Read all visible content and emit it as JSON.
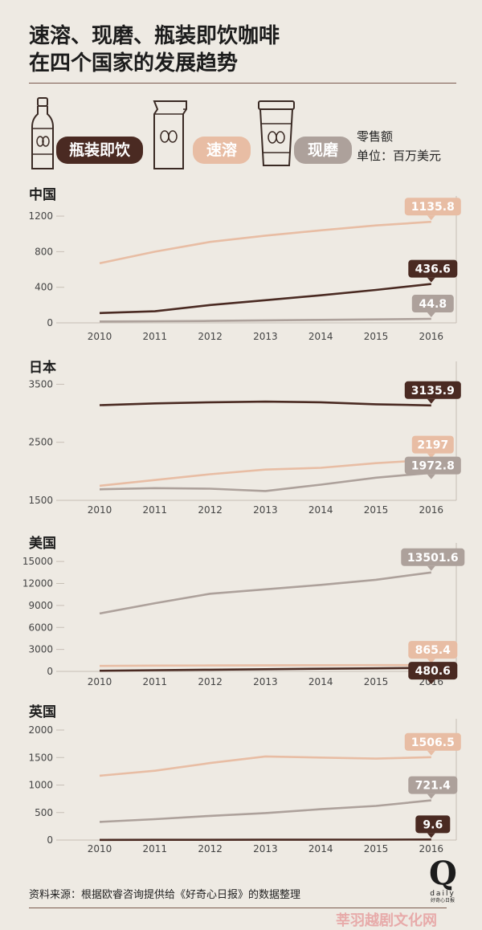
{
  "title": {
    "line1": "速溶、现磨、瓶装即饮咖啡",
    "line2": "在四个国家的发展趋势"
  },
  "legend": {
    "items": [
      {
        "label": "瓶装即饮",
        "icon": "bottle-icon",
        "color": "#4a2a22"
      },
      {
        "label": "速溶",
        "icon": "coffee-bag-icon",
        "color": "#e8bda4"
      },
      {
        "label": "现磨",
        "icon": "coffee-cup-icon",
        "color": "#ada19b"
      }
    ],
    "unit_line1": "零售额",
    "unit_line2": "单位：百万美元"
  },
  "colors": {
    "bottled": "#4a2a22",
    "instant": "#e8bda4",
    "fresh": "#ada19b",
    "axis": "#c7bfb6",
    "tick": "#444444"
  },
  "chart_data": [
    {
      "type": "line",
      "title": "中国",
      "x": [
        "2010",
        "2011",
        "2012",
        "2013",
        "2014",
        "2015",
        "2016"
      ],
      "ylim": [
        0,
        1300
      ],
      "yticks": [
        0,
        400,
        800,
        1200
      ],
      "series": [
        {
          "key": "instant",
          "values": [
            670,
            800,
            910,
            980,
            1040,
            1095,
            1135.8
          ],
          "end_label": "1135.8"
        },
        {
          "key": "bottled",
          "values": [
            110,
            130,
            200,
            255,
            310,
            370,
            436.6
          ],
          "end_label": "436.6"
        },
        {
          "key": "fresh",
          "values": [
            15,
            18,
            22,
            28,
            33,
            39,
            44.8
          ],
          "end_label": "44.8"
        }
      ]
    },
    {
      "type": "line",
      "title": "日本",
      "x": [
        "2010",
        "2011",
        "2012",
        "2013",
        "2014",
        "2015",
        "2016"
      ],
      "ylim": [
        1500,
        3700
      ],
      "yticks": [
        1500,
        2500,
        3500
      ],
      "series": [
        {
          "key": "bottled",
          "values": [
            3140,
            3170,
            3190,
            3200,
            3190,
            3155,
            3135.9
          ],
          "end_label": "3135.9"
        },
        {
          "key": "instant",
          "values": [
            1750,
            1850,
            1950,
            2030,
            2060,
            2140,
            2197
          ],
          "end_label": "2197"
        },
        {
          "key": "fresh",
          "values": [
            1690,
            1710,
            1700,
            1660,
            1770,
            1890,
            1972.8
          ],
          "end_label": "1972.8"
        }
      ]
    },
    {
      "type": "line",
      "title": "美国",
      "x": [
        "2010",
        "2011",
        "2012",
        "2013",
        "2014",
        "2015",
        "2016"
      ],
      "ylim": [
        0,
        16000
      ],
      "yticks": [
        0,
        3000,
        6000,
        9000,
        12000,
        15000
      ],
      "series": [
        {
          "key": "fresh",
          "values": [
            7900,
            9300,
            10600,
            11200,
            11800,
            12500,
            13501.6
          ],
          "end_label": "13501.6"
        },
        {
          "key": "instant",
          "values": [
            750,
            790,
            810,
            830,
            845,
            855,
            865.4
          ],
          "end_label": "865.4"
        },
        {
          "key": "bottled",
          "values": [
            90,
            160,
            230,
            300,
            360,
            420,
            480.6
          ],
          "end_label": "480.6"
        }
      ]
    },
    {
      "type": "line",
      "title": "英国",
      "x": [
        "2010",
        "2011",
        "2012",
        "2013",
        "2014",
        "2015",
        "2016"
      ],
      "ylim": [
        0,
        2000
      ],
      "yticks": [
        0,
        500,
        1000,
        1500,
        2000
      ],
      "series": [
        {
          "key": "instant",
          "values": [
            1170,
            1260,
            1400,
            1520,
            1500,
            1480,
            1506.5
          ],
          "end_label": "1506.5"
        },
        {
          "key": "fresh",
          "values": [
            330,
            380,
            440,
            490,
            560,
            620,
            721.4
          ],
          "end_label": "721.4"
        },
        {
          "key": "bottled",
          "values": [
            3,
            4,
            5,
            6,
            7,
            8,
            9.6
          ],
          "end_label": "9.6"
        }
      ]
    }
  ],
  "source": "资料来源：根据欧睿咨询提供给《好奇心日报》的数据整理",
  "logo": {
    "letter": "Q",
    "word": "daily",
    "sub": "好奇心日报"
  },
  "watermark": "莘羽越剧文化网"
}
